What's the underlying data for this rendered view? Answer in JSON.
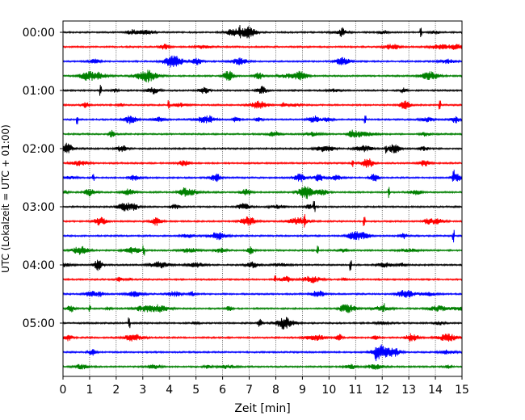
{
  "chart_data": {
    "type": "line",
    "xlabel": "Zeit  [min]",
    "ylabel": "UTC (Lokalzeit = UTC + 01:00)",
    "xlim": [
      0,
      15
    ],
    "x_ticks": [
      "0",
      "1",
      "2",
      "3",
      "4",
      "5",
      "6",
      "7",
      "8",
      "9",
      "10",
      "11",
      "12",
      "13",
      "14",
      "15"
    ],
    "y_tick_labels": [
      "00:00",
      "01:00",
      "02:00",
      "03:00",
      "04:00",
      "05:00"
    ],
    "grid": "vertical dotted",
    "trace_interval_minutes": 15,
    "trace_count": 24,
    "trace_colors": [
      "#000000",
      "#ff0000",
      "#0000ff",
      "#008000"
    ],
    "traces": [
      {
        "start": "00:00",
        "color": "#000000"
      },
      {
        "start": "00:15",
        "color": "#ff0000"
      },
      {
        "start": "00:30",
        "color": "#0000ff"
      },
      {
        "start": "00:45",
        "color": "#008000"
      },
      {
        "start": "01:00",
        "color": "#000000"
      },
      {
        "start": "01:15",
        "color": "#ff0000"
      },
      {
        "start": "01:30",
        "color": "#0000ff"
      },
      {
        "start": "01:45",
        "color": "#008000"
      },
      {
        "start": "02:00",
        "color": "#000000"
      },
      {
        "start": "02:15",
        "color": "#ff0000"
      },
      {
        "start": "02:30",
        "color": "#0000ff"
      },
      {
        "start": "02:45",
        "color": "#008000"
      },
      {
        "start": "03:00",
        "color": "#000000"
      },
      {
        "start": "03:15",
        "color": "#ff0000"
      },
      {
        "start": "03:30",
        "color": "#0000ff"
      },
      {
        "start": "03:45",
        "color": "#008000"
      },
      {
        "start": "04:00",
        "color": "#000000"
      },
      {
        "start": "04:15",
        "color": "#ff0000"
      },
      {
        "start": "04:30",
        "color": "#0000ff"
      },
      {
        "start": "04:45",
        "color": "#008000"
      },
      {
        "start": "05:00",
        "color": "#000000"
      },
      {
        "start": "05:15",
        "color": "#ff0000"
      },
      {
        "start": "05:30",
        "color": "#0000ff"
      },
      {
        "start": "05:45",
        "color": "#008000"
      }
    ],
    "title": ""
  }
}
